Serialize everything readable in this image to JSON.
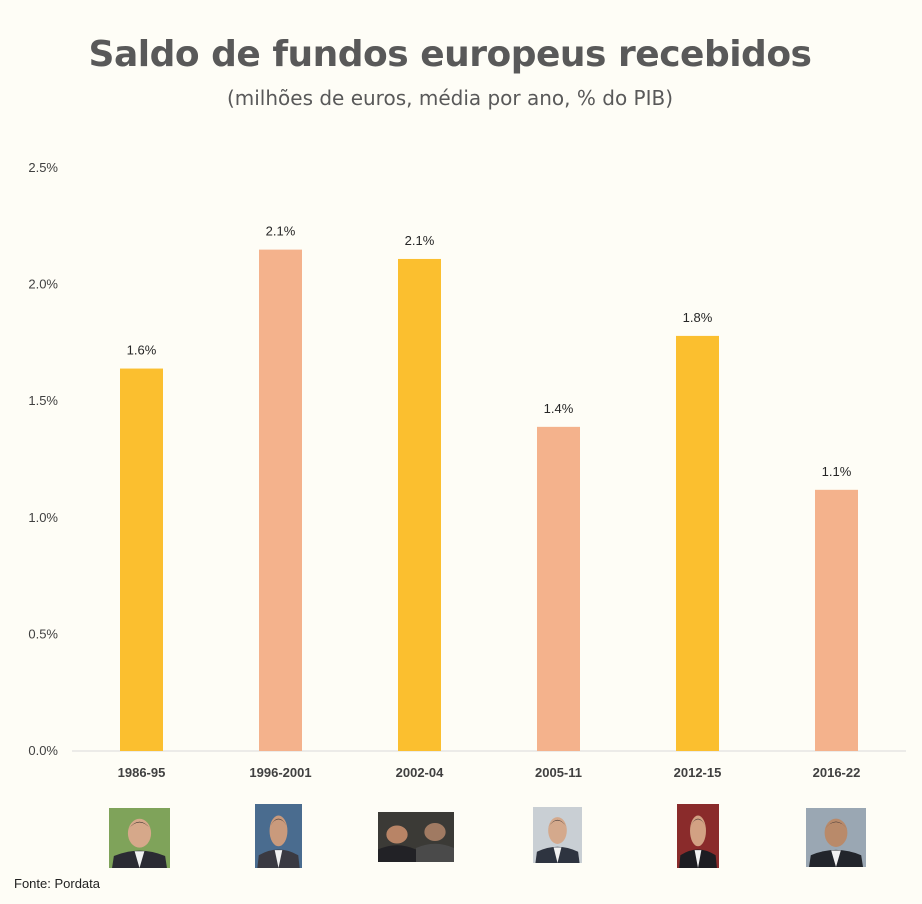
{
  "chart_data": {
    "type": "bar",
    "title": "Saldo de fundos europeus recebidos",
    "subtitle": "(milhões de euros, média por ano, % do PIB)",
    "categories": [
      "1986-95",
      "1996-2001",
      "2002-04",
      "2005-11",
      "2012-15",
      "2016-22"
    ],
    "values": [
      1.64,
      2.15,
      2.11,
      1.39,
      1.78,
      1.12
    ],
    "data_labels": [
      "1.6%",
      "2.1%",
      "2.1%",
      "1.4%",
      "1.8%",
      "1.1%"
    ],
    "colors": [
      "#fbbf2f",
      "#f4b28c",
      "#fbbf2f",
      "#f4b28c",
      "#fbbf2f",
      "#f4b28c"
    ],
    "ylim": [
      0,
      2.5
    ],
    "yticks": [
      {
        "value": 0,
        "label": "0.0%"
      },
      {
        "value": 0.5,
        "label": "0.5%"
      },
      {
        "value": 1.0,
        "label": "1.0%"
      },
      {
        "value": 1.5,
        "label": "1.5%"
      },
      {
        "value": 2.0,
        "label": "2.0%"
      },
      {
        "value": 2.5,
        "label": "2.5%"
      }
    ],
    "xlabel": "",
    "ylabel": "",
    "grid": false
  },
  "photos": [
    "portrait",
    "portrait",
    "portrait-pair",
    "portrait",
    "portrait",
    "portrait"
  ],
  "source": "Fonte: Pordata"
}
